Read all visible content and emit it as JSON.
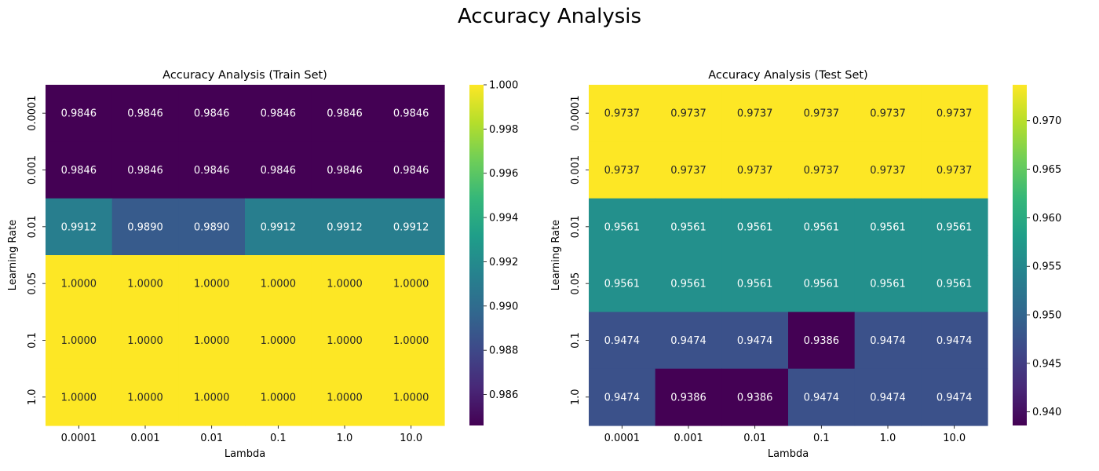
{
  "suptitle": "Accuracy Analysis",
  "colormap": {
    "name": "viridis",
    "stops": [
      "#440154",
      "#482878",
      "#3e4989",
      "#31688e",
      "#26828e",
      "#1f9e89",
      "#35b779",
      "#6ece58",
      "#b5de2b",
      "#fde725"
    ]
  },
  "chart_data": [
    {
      "type": "heatmap",
      "title": "Accuracy Analysis (Train Set)",
      "xlabel": "Lambda",
      "ylabel": "Learning Rate",
      "x_categories": [
        "0.0001",
        "0.001",
        "0.01",
        "0.1",
        "1.0",
        "10.0"
      ],
      "y_categories": [
        "0.0001",
        "0.001",
        "0.01",
        "0.05",
        "0.1",
        "1.0"
      ],
      "values": [
        [
          0.9846,
          0.9846,
          0.9846,
          0.9846,
          0.9846,
          0.9846
        ],
        [
          0.9846,
          0.9846,
          0.9846,
          0.9846,
          0.9846,
          0.9846
        ],
        [
          0.9912,
          0.989,
          0.989,
          0.9912,
          0.9912,
          0.9912
        ],
        [
          1.0,
          1.0,
          1.0,
          1.0,
          1.0,
          1.0
        ],
        [
          1.0,
          1.0,
          1.0,
          1.0,
          1.0,
          1.0
        ],
        [
          1.0,
          1.0,
          1.0,
          1.0,
          1.0,
          1.0
        ]
      ],
      "annotation_format": "0.0000",
      "colorbar": {
        "range": [
          0.9846,
          1.0
        ],
        "ticks": [
          0.986,
          0.988,
          0.99,
          0.992,
          0.994,
          0.996,
          0.998,
          1.0
        ],
        "tick_labels": [
          "0.986",
          "0.988",
          "0.990",
          "0.992",
          "0.994",
          "0.996",
          "0.998",
          "1.000"
        ]
      }
    },
    {
      "type": "heatmap",
      "title": "Accuracy Analysis (Test Set)",
      "xlabel": "Lambda",
      "ylabel": "Learning Rate",
      "x_categories": [
        "0.0001",
        "0.001",
        "0.01",
        "0.1",
        "1.0",
        "10.0"
      ],
      "y_categories": [
        "0.0001",
        "0.001",
        "0.01",
        "0.05",
        "0.1",
        "1.0"
      ],
      "values": [
        [
          0.9737,
          0.9737,
          0.9737,
          0.9737,
          0.9737,
          0.9737
        ],
        [
          0.9737,
          0.9737,
          0.9737,
          0.9737,
          0.9737,
          0.9737
        ],
        [
          0.9561,
          0.9561,
          0.9561,
          0.9561,
          0.9561,
          0.9561
        ],
        [
          0.9561,
          0.9561,
          0.9561,
          0.9561,
          0.9561,
          0.9561
        ],
        [
          0.9474,
          0.9474,
          0.9474,
          0.9386,
          0.9474,
          0.9474
        ],
        [
          0.9474,
          0.9386,
          0.9386,
          0.9474,
          0.9474,
          0.9474
        ]
      ],
      "annotation_format": "0.0000",
      "colorbar": {
        "range": [
          0.9386,
          0.9737
        ],
        "ticks": [
          0.94,
          0.945,
          0.95,
          0.955,
          0.96,
          0.965,
          0.97
        ],
        "tick_labels": [
          "0.940",
          "0.945",
          "0.950",
          "0.955",
          "0.960",
          "0.965",
          "0.970"
        ]
      }
    }
  ]
}
